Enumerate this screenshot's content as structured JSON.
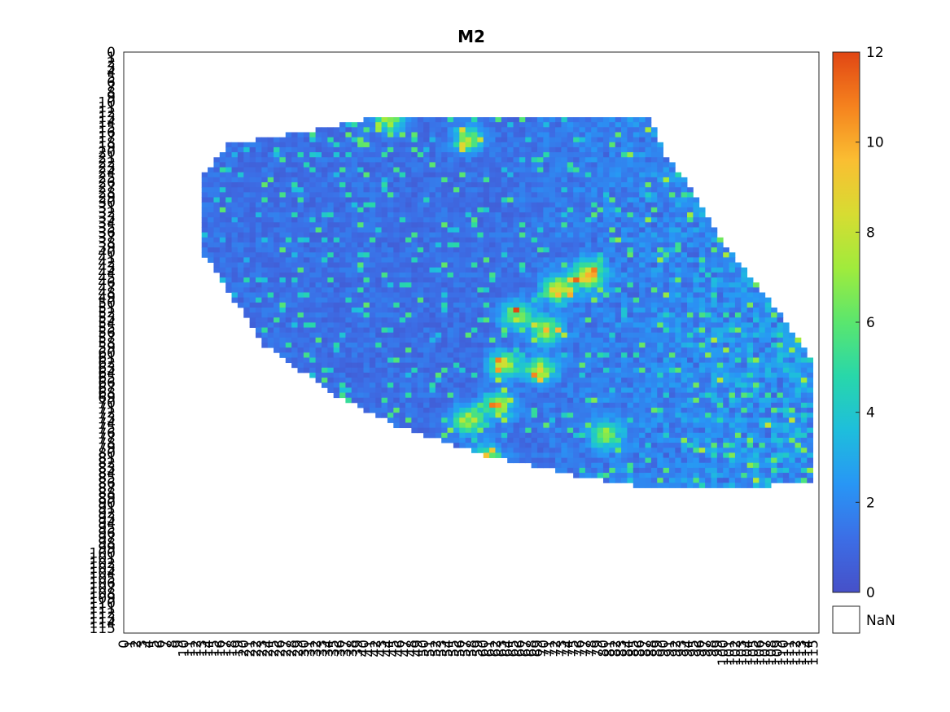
{
  "chart_data": {
    "type": "heatmap",
    "title": "M2",
    "xlabel": "",
    "ylabel": "",
    "x_index_range": [
      0,
      115
    ],
    "y_index_range": [
      0,
      115
    ],
    "x_tick_step": 1,
    "y_tick_step": 1,
    "grid": false,
    "legend_placement": "right",
    "colorscale": "turbo",
    "color_limits": [
      0,
      12
    ],
    "colorbar": {
      "ticks": [
        0,
        2,
        4,
        6,
        8,
        10,
        12
      ],
      "nan_label": "NaN",
      "nan_color": "#ffffff"
    },
    "data_region": {
      "footprint": [
        [
          13,
          40
        ],
        [
          15,
          32
        ],
        [
          18,
          17
        ],
        [
          24,
          13
        ],
        [
          40,
          13
        ],
        [
          58,
          23
        ],
        [
          68,
          35
        ],
        [
          74,
          45
        ],
        [
          80,
          60
        ],
        [
          84,
          75
        ],
        [
          87,
          90
        ],
        [
          87,
          100
        ],
        [
          85,
          115
        ],
        [
          60,
          114
        ],
        [
          50,
          108
        ],
        [
          38,
          100
        ],
        [
          28,
          95
        ],
        [
          20,
          90
        ],
        [
          12,
          87
        ],
        [
          13,
          60
        ]
      ],
      "typical_value": 1.2,
      "hotspots": [
        {
          "x": 77,
          "y": 44,
          "value": 11.5
        },
        {
          "x": 72,
          "y": 47,
          "value": 11
        },
        {
          "x": 70,
          "y": 55,
          "value": 9.5
        },
        {
          "x": 63,
          "y": 62,
          "value": 10
        },
        {
          "x": 60,
          "y": 81,
          "value": 11.5
        },
        {
          "x": 57,
          "y": 73,
          "value": 10
        },
        {
          "x": 69,
          "y": 63,
          "value": 9
        },
        {
          "x": 65,
          "y": 52,
          "value": 8.5
        },
        {
          "x": 57,
          "y": 17,
          "value": 8.5
        },
        {
          "x": 44,
          "y": 13,
          "value": 8
        },
        {
          "x": 80,
          "y": 76,
          "value": 8
        },
        {
          "x": 62,
          "y": 70,
          "value": 9
        }
      ]
    }
  }
}
